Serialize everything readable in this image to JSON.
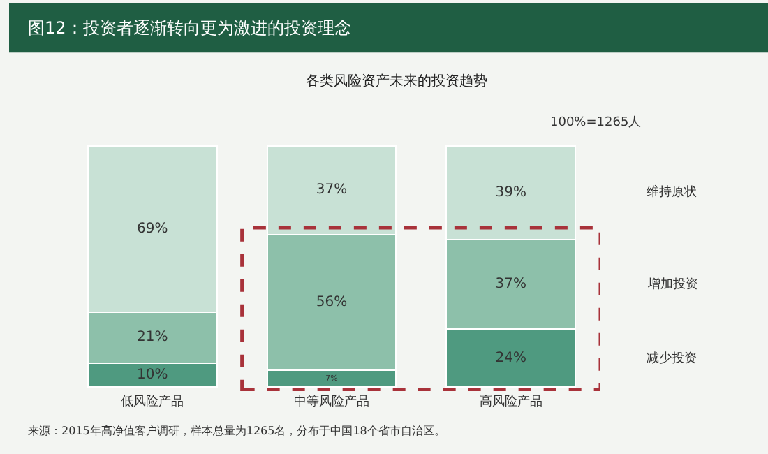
{
  "chart_data": {
    "type": "bar",
    "stacked": true,
    "title": "图12：投资者逐渐转向更为激进的投资理念",
    "subtitle": "各类风险资产未来的投资趋势",
    "categories": [
      "低风险产品",
      "中等风险产品",
      "高风险产品"
    ],
    "series": [
      {
        "name": "减少投资",
        "color": "#4f9a80",
        "values": [
          10,
          7,
          24
        ],
        "value_labels": [
          "10%",
          "7%",
          "24%"
        ]
      },
      {
        "name": "增加投资",
        "color": "#8dc0aa",
        "values": [
          21,
          56,
          37
        ],
        "value_labels": [
          "21%",
          "56%",
          "37%"
        ]
      },
      {
        "name": "维持原状",
        "color": "#c8e1d5",
        "values": [
          69,
          37,
          39
        ],
        "value_labels": [
          "69%",
          "37%",
          "39%"
        ]
      }
    ],
    "annotations": [
      "100%=1265人",
      "来源：2015年高净值客户调研，样本总量为1265名，分布于中国18个省市自治区。"
    ],
    "legend": false,
    "grid": false
  }
}
